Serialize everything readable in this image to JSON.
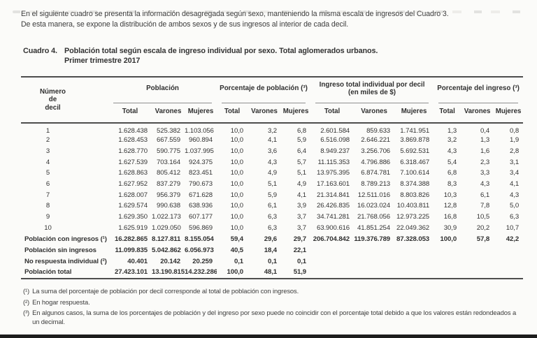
{
  "intro": {
    "text": "En el siguiente cuadro se presenta la información desagregada según sexo, manteniendo la misma escala de ingresos del Cuadro 3.\nDe esta manera, se expone la distribución de ambos sexos y de sus ingresos al interior de cada decil."
  },
  "title": {
    "label": "Cuadro 4.",
    "text": "Población total según escala de ingreso individual por sexo. Total aglomerados urbanos.",
    "subtitle": "Primer trimestre 2017"
  },
  "table": {
    "corner": "Número\nde\ndecil",
    "groups": [
      {
        "label": "Población",
        "sub": [
          "Total",
          "Varones",
          "Mujeres"
        ]
      },
      {
        "label": "Porcentaje de población (³)",
        "sub": [
          "Total",
          "Varones",
          "Mujeres"
        ]
      },
      {
        "label": "Ingreso total individual por decil\n(en miles de $)",
        "sub": [
          "Total",
          "Varones",
          "Mujeres"
        ]
      },
      {
        "label": "Porcentaje del ingreso (³)",
        "sub": [
          "Total",
          "Varones",
          "Mujeres"
        ]
      }
    ],
    "rows": [
      {
        "label": "1",
        "cells": [
          "1.628.438",
          "525.382",
          "1.103.056",
          "10,0",
          "3,2",
          "6,8",
          "2.601.584",
          "859.633",
          "1.741.951",
          "1,3",
          "0,4",
          "0,8"
        ]
      },
      {
        "label": "2",
        "cells": [
          "1.628.453",
          "667.559",
          "960.894",
          "10,0",
          "4,1",
          "5,9",
          "6.516.098",
          "2.646.221",
          "3.869.878",
          "3,2",
          "1,3",
          "1,9"
        ]
      },
      {
        "label": "3",
        "cells": [
          "1.628.770",
          "590.775",
          "1.037.995",
          "10,0",
          "3,6",
          "6,4",
          "8.949.237",
          "3.256.706",
          "5.692.531",
          "4,3",
          "1,6",
          "2,8"
        ]
      },
      {
        "label": "4",
        "cells": [
          "1.627.539",
          "703.164",
          "924.375",
          "10,0",
          "4,3",
          "5,7",
          "11.115.353",
          "4.796.886",
          "6.318.467",
          "5,4",
          "2,3",
          "3,1"
        ]
      },
      {
        "label": "5",
        "cells": [
          "1.628.863",
          "805.412",
          "823.451",
          "10,0",
          "4,9",
          "5,1",
          "13.975.395",
          "6.874.781",
          "7.100.614",
          "6,8",
          "3,3",
          "3,4"
        ]
      },
      {
        "label": "6",
        "cells": [
          "1.627.952",
          "837.279",
          "790.673",
          "10,0",
          "5,1",
          "4,9",
          "17.163.601",
          "8.789.213",
          "8.374.388",
          "8,3",
          "4,3",
          "4,1"
        ]
      },
      {
        "label": "7",
        "cells": [
          "1.628.007",
          "956.379",
          "671.628",
          "10,0",
          "5,9",
          "4,1",
          "21.314.841",
          "12.511.016",
          "8.803.826",
          "10,3",
          "6,1",
          "4,3"
        ]
      },
      {
        "label": "8",
        "cells": [
          "1.629.574",
          "990.638",
          "638.936",
          "10,0",
          "6,1",
          "3,9",
          "26.426.835",
          "16.023.024",
          "10.403.811",
          "12,8",
          "7,8",
          "5,0"
        ]
      },
      {
        "label": "9",
        "cells": [
          "1.629.350",
          "1.022.173",
          "607.177",
          "10,0",
          "6,3",
          "3,7",
          "34.741.281",
          "21.768.056",
          "12.973.225",
          "16,8",
          "10,5",
          "6,3"
        ]
      },
      {
        "label": "10",
        "cells": [
          "1.625.919",
          "1.029.050",
          "596.869",
          "10,0",
          "6,3",
          "3,7",
          "63.900.616",
          "41.851.254",
          "22.049.362",
          "30,9",
          "20,2",
          "10,7"
        ]
      }
    ],
    "summary_rows": [
      {
        "label": "Población con ingresos (¹)",
        "cells": [
          "16.282.865",
          "8.127.811",
          "8.155.054",
          "59,4",
          "29,6",
          "29,7",
          "206.704.842",
          "119.376.789",
          "87.328.053",
          "100,0",
          "57,8",
          "42,2"
        ]
      },
      {
        "label": "Población sin ingresos",
        "cells": [
          "11.099.835",
          "5.042.862",
          "6.056.973",
          "40,5",
          "18,4",
          "22,1",
          "",
          "",
          "",
          "",
          "",
          ""
        ]
      },
      {
        "label": "No respuesta individual (²)",
        "cells": [
          "40.401",
          "20.142",
          "20.259",
          "0,1",
          "0,1",
          "0,1",
          "",
          "",
          "",
          "",
          "",
          ""
        ]
      },
      {
        "label": "Población total",
        "cells": [
          "27.423.101",
          "13.190.815",
          "14.232.286",
          "100,0",
          "48,1",
          "51,9",
          "",
          "",
          "",
          "",
          "",
          ""
        ]
      }
    ]
  },
  "footnotes": [
    {
      "marker": "(¹)",
      "text": "La suma del porcentaje de población por decil corresponde al total de población con ingresos."
    },
    {
      "marker": "(²)",
      "text": "En hogar respuesta."
    },
    {
      "marker": "(³)",
      "text": "En algunos casos, la suma de los porcentajes de población y del ingreso por sexo puede no coincidir con el porcentaje total debido a que los valores están redondeados a un decimal."
    }
  ]
}
